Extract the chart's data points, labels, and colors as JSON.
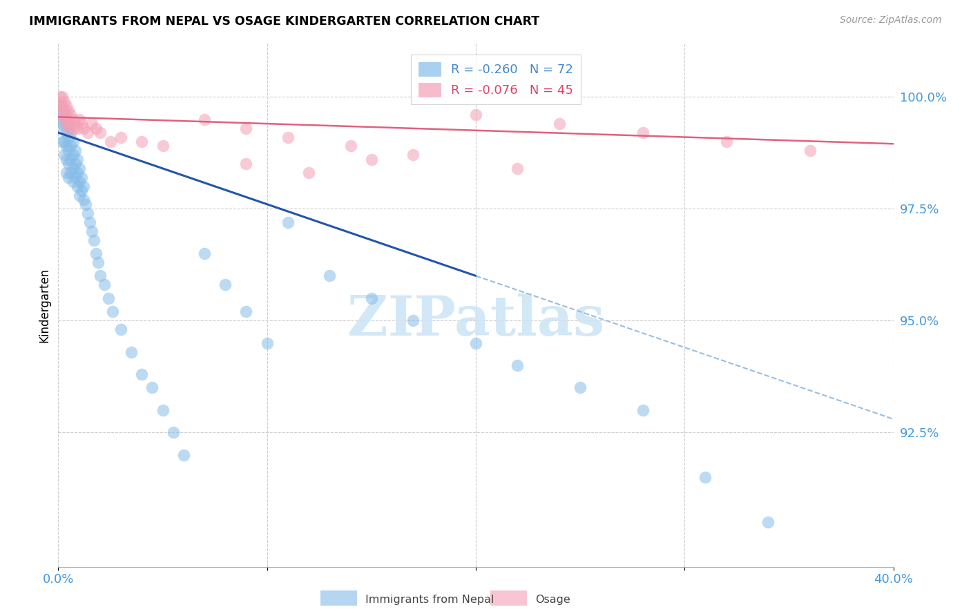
{
  "title": "IMMIGRANTS FROM NEPAL VS OSAGE KINDERGARTEN CORRELATION CHART",
  "source": "Source: ZipAtlas.com",
  "ylabel": "Kindergarten",
  "xlim": [
    0.0,
    0.4
  ],
  "ylim": [
    89.5,
    101.2
  ],
  "legend_blue_r": "-0.260",
  "legend_blue_n": "72",
  "legend_pink_r": "-0.076",
  "legend_pink_n": "45",
  "legend_label_blue": "Immigrants from Nepal",
  "legend_label_pink": "Osage",
  "blue_color": "#85bce8",
  "pink_color": "#f4a0b5",
  "trendline_blue_solid_color": "#2255aa",
  "trendline_blue_dashed_color": "#99bedd",
  "trendline_pink_color": "#e06080",
  "watermark_color": "#cce4f5",
  "ytick_vals": [
    92.5,
    95.0,
    97.5,
    100.0
  ],
  "ytick_labels": [
    "92.5%",
    "95.0%",
    "97.5%",
    "100.0%"
  ],
  "blue_x": [
    0.001,
    0.001,
    0.002,
    0.002,
    0.002,
    0.003,
    0.003,
    0.003,
    0.003,
    0.004,
    0.004,
    0.004,
    0.004,
    0.004,
    0.005,
    0.005,
    0.005,
    0.005,
    0.005,
    0.006,
    0.006,
    0.006,
    0.006,
    0.007,
    0.007,
    0.007,
    0.007,
    0.008,
    0.008,
    0.008,
    0.009,
    0.009,
    0.009,
    0.01,
    0.01,
    0.01,
    0.011,
    0.011,
    0.012,
    0.012,
    0.013,
    0.014,
    0.015,
    0.016,
    0.017,
    0.018,
    0.019,
    0.02,
    0.022,
    0.024,
    0.026,
    0.03,
    0.035,
    0.04,
    0.045,
    0.05,
    0.055,
    0.06,
    0.07,
    0.08,
    0.09,
    0.1,
    0.11,
    0.13,
    0.15,
    0.17,
    0.2,
    0.22,
    0.25,
    0.28,
    0.31,
    0.34
  ],
  "blue_y": [
    99.8,
    99.5,
    99.7,
    99.4,
    99.0,
    99.6,
    99.3,
    99.0,
    98.7,
    99.5,
    99.2,
    98.9,
    98.6,
    98.3,
    99.4,
    99.1,
    98.8,
    98.5,
    98.2,
    99.2,
    98.9,
    98.6,
    98.3,
    99.0,
    98.7,
    98.4,
    98.1,
    98.8,
    98.5,
    98.2,
    98.6,
    98.3,
    98.0,
    98.4,
    98.1,
    97.8,
    98.2,
    97.9,
    98.0,
    97.7,
    97.6,
    97.4,
    97.2,
    97.0,
    96.8,
    96.5,
    96.3,
    96.0,
    95.8,
    95.5,
    95.2,
    94.8,
    94.3,
    93.8,
    93.5,
    93.0,
    92.5,
    92.0,
    96.5,
    95.8,
    95.2,
    94.5,
    97.2,
    96.0,
    95.5,
    95.0,
    94.5,
    94.0,
    93.5,
    93.0,
    91.5,
    90.5
  ],
  "pink_x": [
    0.001,
    0.001,
    0.002,
    0.002,
    0.002,
    0.003,
    0.003,
    0.003,
    0.004,
    0.004,
    0.004,
    0.005,
    0.005,
    0.005,
    0.006,
    0.006,
    0.007,
    0.007,
    0.008,
    0.009,
    0.01,
    0.011,
    0.012,
    0.014,
    0.016,
    0.018,
    0.02,
    0.025,
    0.03,
    0.04,
    0.05,
    0.07,
    0.09,
    0.11,
    0.14,
    0.17,
    0.2,
    0.24,
    0.28,
    0.32,
    0.36,
    0.09,
    0.12,
    0.15,
    0.22
  ],
  "pink_y": [
    100.0,
    99.8,
    100.0,
    99.8,
    99.6,
    99.9,
    99.7,
    99.5,
    99.8,
    99.6,
    99.4,
    99.7,
    99.5,
    99.3,
    99.6,
    99.4,
    99.5,
    99.3,
    99.4,
    99.3,
    99.5,
    99.4,
    99.3,
    99.2,
    99.4,
    99.3,
    99.2,
    99.0,
    99.1,
    99.0,
    98.9,
    99.5,
    99.3,
    99.1,
    98.9,
    98.7,
    99.6,
    99.4,
    99.2,
    99.0,
    98.8,
    98.5,
    98.3,
    98.6,
    98.4
  ],
  "blue_trendline_x0": 0.0,
  "blue_trendline_x_solid_end": 0.2,
  "blue_trendline_x_dashed_end": 0.4,
  "blue_trendline_y0": 99.2,
  "blue_trendline_slope": -16.0,
  "pink_trendline_y0": 99.55,
  "pink_trendline_slope": -1.5
}
